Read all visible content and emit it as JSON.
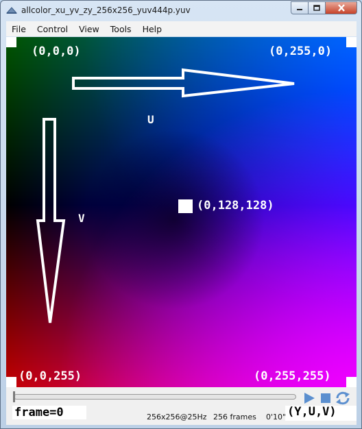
{
  "window": {
    "title": "allcolor_xu_yv_zy_256x256_yuv444p.yuv",
    "buttons": {
      "minimize": "minimize",
      "maximize": "maximize",
      "close": "close"
    }
  },
  "menu": [
    "File",
    "Control",
    "View",
    "Tools",
    "Help"
  ],
  "video": {
    "corner_labels": {
      "top_left": "(0,0,0)",
      "top_right": "(0,255,0)",
      "bottom_left": "(0,0,255)",
      "bottom_right": "(0,255,255)"
    },
    "center_label": "(0,128,128)",
    "axis_u": "U",
    "axis_v": "V"
  },
  "controls": {
    "progress_fraction": 0,
    "frame_label": "frame=0",
    "resolution": "256x256@25Hz",
    "frames": "256 frames",
    "duration": "0'10\"",
    "yuv_label": "(Y,U,V)",
    "icons": {
      "play": "play-icon",
      "stop": "stop-icon",
      "loop": "loop-icon"
    },
    "accent": "#5b8fcf"
  }
}
